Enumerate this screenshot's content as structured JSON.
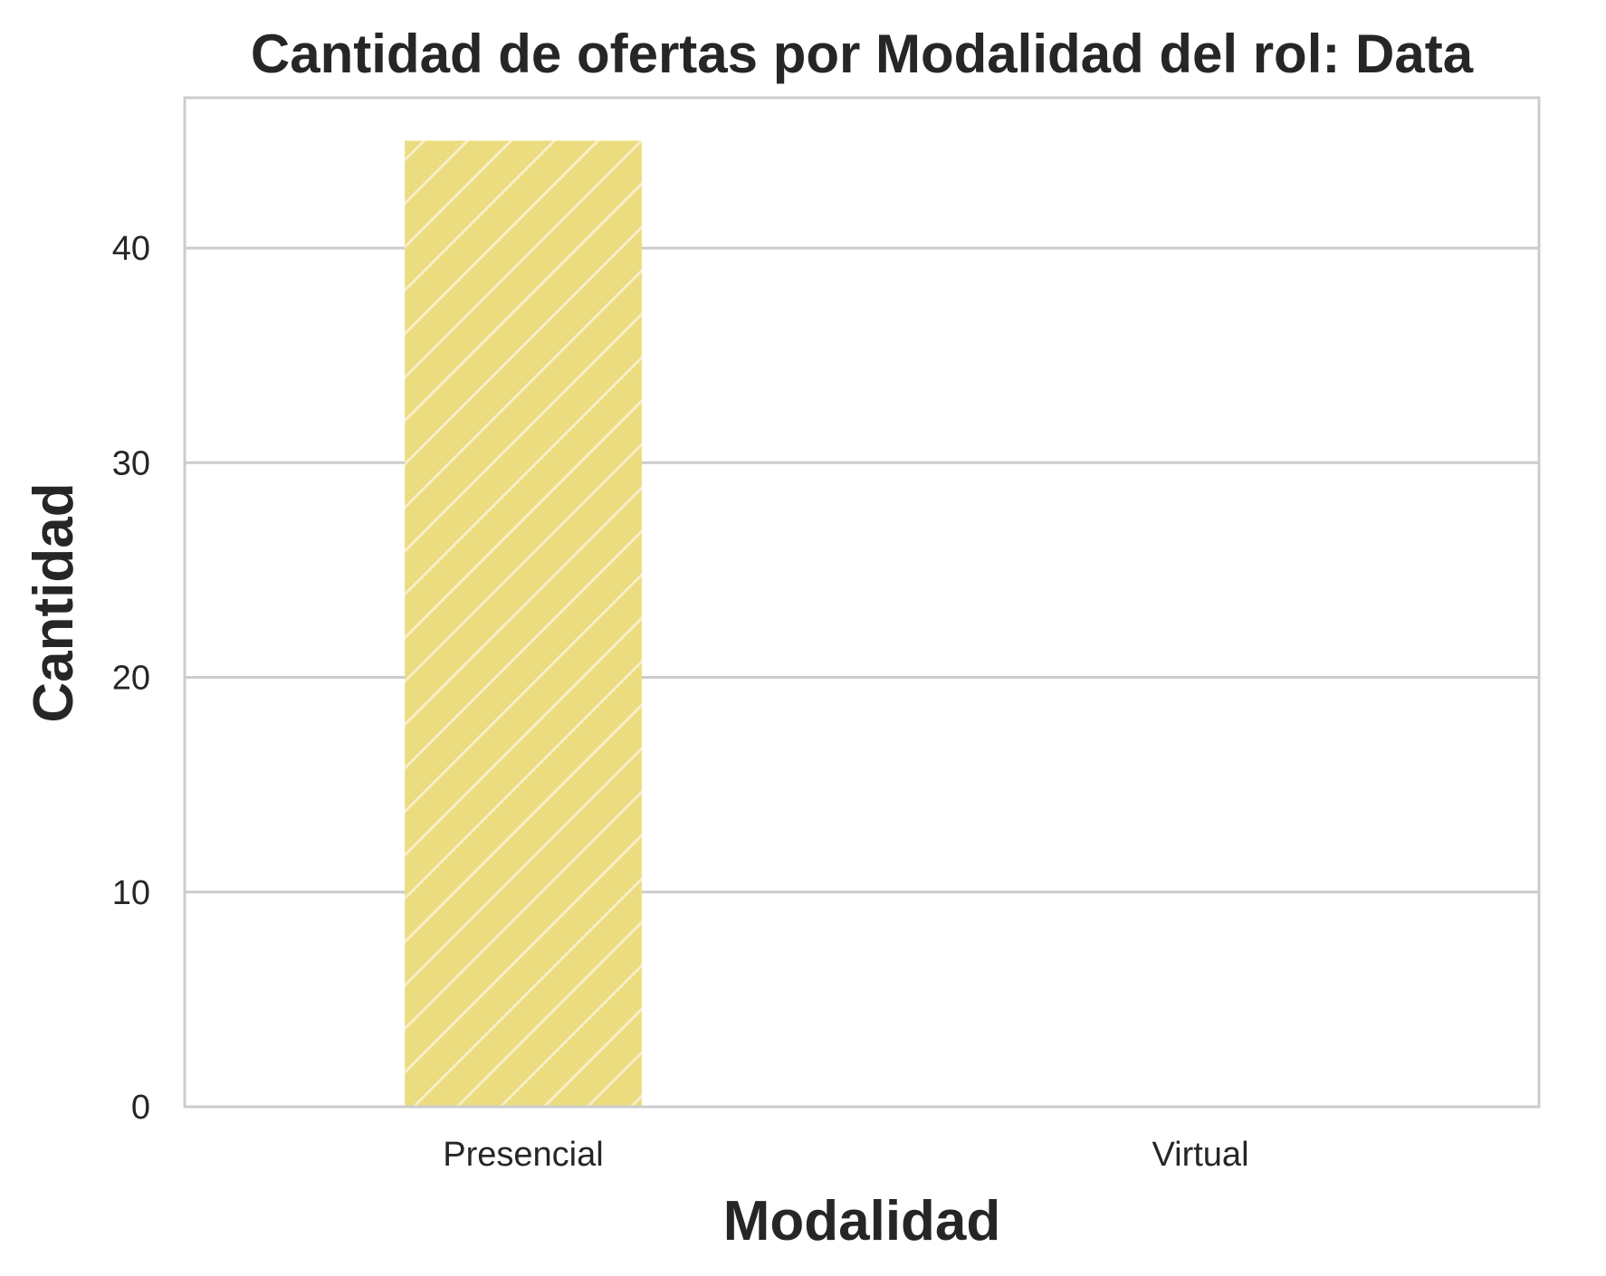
{
  "chart_data": {
    "type": "bar",
    "title": "Cantidad de ofertas por Modalidad del rol: Data",
    "xlabel": "Modalidad",
    "ylabel": "Cantidad",
    "categories": [
      "Presencial",
      "Virtual"
    ],
    "values": [
      45,
      0
    ],
    "ylim": [
      0,
      47
    ],
    "yticks": [
      "0",
      "10",
      "20",
      "30",
      "40"
    ],
    "grid": "horizontal",
    "bar_color": "#ecdc80",
    "hatch": "diagonal-white"
  }
}
